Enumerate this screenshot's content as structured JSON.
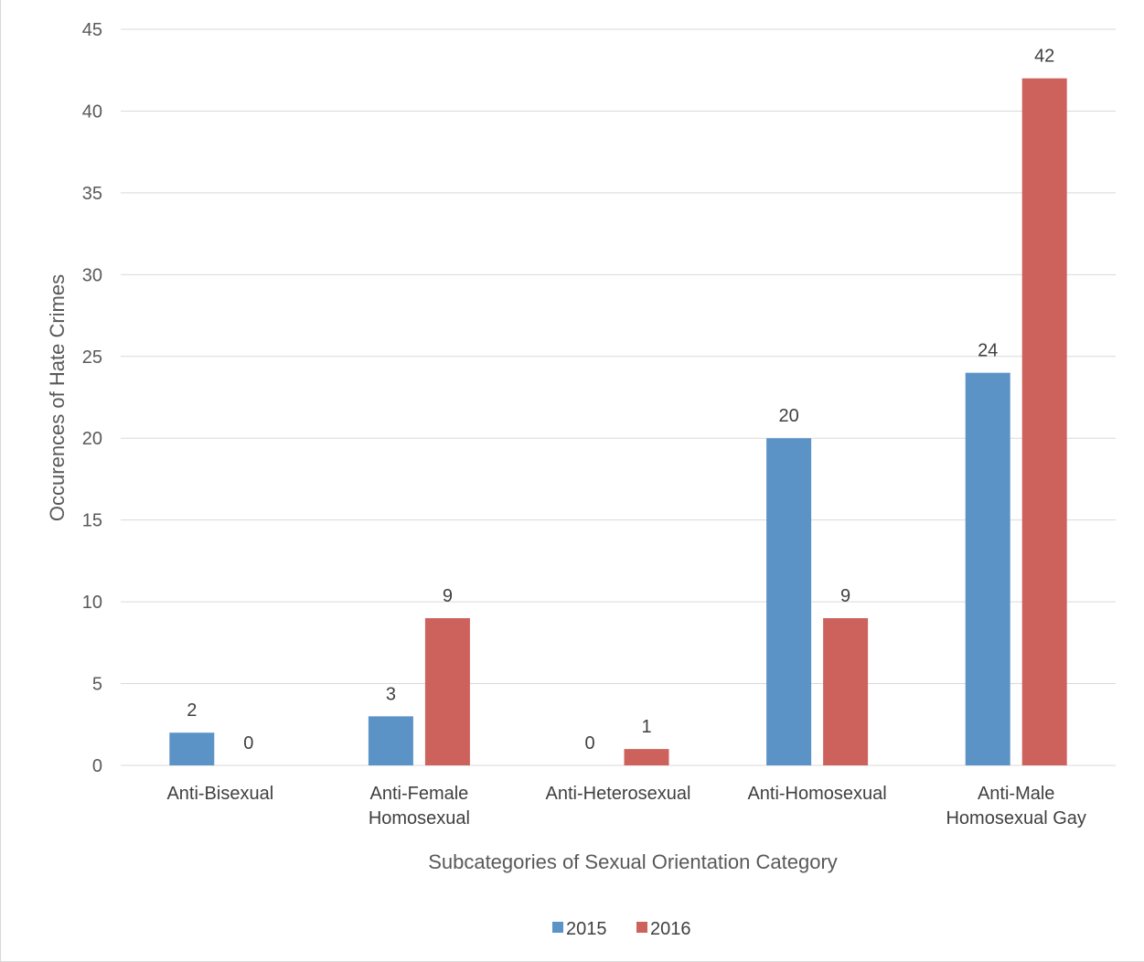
{
  "chart_data": {
    "type": "bar",
    "title": "",
    "xlabel": "Subcategories of Sexual Orientation Category",
    "ylabel": "Occurences of Hate Crimes",
    "ylim": [
      0,
      45
    ],
    "yticks": [
      0,
      5,
      10,
      15,
      20,
      25,
      30,
      35,
      40,
      45
    ],
    "grid": true,
    "legend_position": "bottom",
    "categories": [
      [
        "Anti-Bisexual"
      ],
      [
        "Anti-Female",
        "Homosexual"
      ],
      [
        "Anti-Heterosexual"
      ],
      [
        "Anti-Homosexual"
      ],
      [
        "Anti-Male",
        "Homosexual Gay"
      ]
    ],
    "series": [
      {
        "name": "2015",
        "color": "#5b93c7",
        "values": [
          2,
          3,
          0,
          20,
          24
        ]
      },
      {
        "name": "2016",
        "color": "#cd625c",
        "values": [
          0,
          9,
          1,
          9,
          42
        ]
      }
    ]
  }
}
